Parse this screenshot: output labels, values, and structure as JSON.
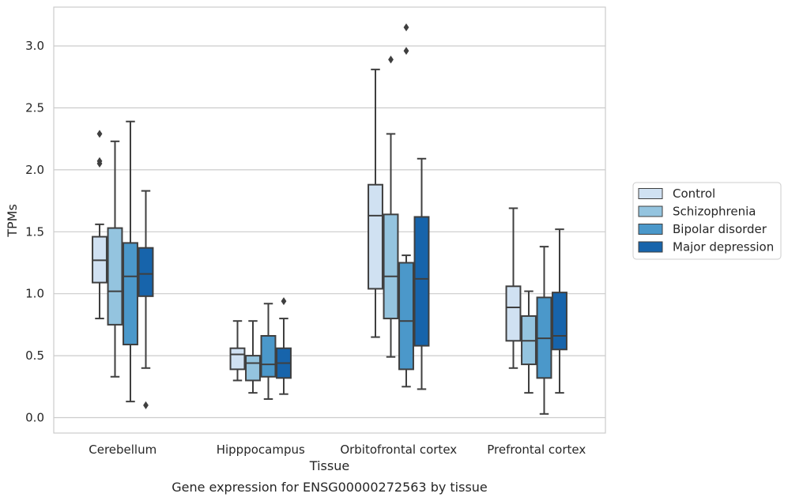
{
  "chart_data": {
    "type": "box",
    "xlabel": "Tissue",
    "ylabel": "TPMs",
    "caption": "Gene expression for ENSG00000272563 by tissue",
    "ylim": [
      -0.12,
      3.32
    ],
    "yticks": [
      "0.0",
      "0.5",
      "1.0",
      "1.5",
      "2.0",
      "2.5",
      "3.0"
    ],
    "grid": "horizontal",
    "legend_position": "right",
    "categories": [
      "Cerebellum",
      "Hipppocampus",
      "Orbitofrontal cortex",
      "Prefrontal cortex"
    ],
    "series": [
      {
        "name": "Control",
        "color": "#d0e1f2",
        "boxes": [
          {
            "whisker_low": 0.8,
            "q1": 1.09,
            "median": 1.27,
            "q3": 1.46,
            "whisker_high": 1.56,
            "outliers": [
              2.05,
              2.07,
              2.29
            ]
          },
          {
            "whisker_low": 0.3,
            "q1": 0.39,
            "median": 0.51,
            "q3": 0.56,
            "whisker_high": 0.78,
            "outliers": []
          },
          {
            "whisker_low": 0.65,
            "q1": 1.04,
            "median": 1.63,
            "q3": 1.88,
            "whisker_high": 2.81,
            "outliers": []
          },
          {
            "whisker_low": 0.4,
            "q1": 0.62,
            "median": 0.89,
            "q3": 1.06,
            "whisker_high": 1.69,
            "outliers": []
          }
        ]
      },
      {
        "name": "Schizophrenia",
        "color": "#94c4df",
        "boxes": [
          {
            "whisker_low": 0.33,
            "q1": 0.75,
            "median": 1.02,
            "q3": 1.53,
            "whisker_high": 2.23,
            "outliers": []
          },
          {
            "whisker_low": 0.2,
            "q1": 0.3,
            "median": 0.44,
            "q3": 0.5,
            "whisker_high": 0.78,
            "outliers": []
          },
          {
            "whisker_low": 0.49,
            "q1": 0.8,
            "median": 1.14,
            "q3": 1.64,
            "whisker_high": 2.29,
            "outliers": [
              2.89
            ]
          },
          {
            "whisker_low": 0.2,
            "q1": 0.43,
            "median": 0.62,
            "q3": 0.82,
            "whisker_high": 1.02,
            "outliers": []
          }
        ]
      },
      {
        "name": "Bipolar disorder",
        "color": "#4b98ca",
        "boxes": [
          {
            "whisker_low": 0.13,
            "q1": 0.59,
            "median": 1.14,
            "q3": 1.41,
            "whisker_high": 2.39,
            "outliers": []
          },
          {
            "whisker_low": 0.15,
            "q1": 0.33,
            "median": 0.43,
            "q3": 0.66,
            "whisker_high": 0.92,
            "outliers": []
          },
          {
            "whisker_low": 0.25,
            "q1": 0.39,
            "median": 0.78,
            "q3": 1.25,
            "whisker_high": 1.31,
            "outliers": [
              2.96,
              3.15
            ]
          },
          {
            "whisker_low": 0.03,
            "q1": 0.32,
            "median": 0.64,
            "q3": 0.97,
            "whisker_high": 1.38,
            "outliers": []
          }
        ]
      },
      {
        "name": "Major depression",
        "color": "#1764ab",
        "boxes": [
          {
            "whisker_low": 0.4,
            "q1": 0.98,
            "median": 1.16,
            "q3": 1.37,
            "whisker_high": 1.83,
            "outliers": [
              0.1
            ]
          },
          {
            "whisker_low": 0.19,
            "q1": 0.32,
            "median": 0.44,
            "q3": 0.56,
            "whisker_high": 0.8,
            "outliers": [
              0.94
            ]
          },
          {
            "whisker_low": 0.23,
            "q1": 0.58,
            "median": 1.12,
            "q3": 1.62,
            "whisker_high": 2.09,
            "outliers": []
          },
          {
            "whisker_low": 0.2,
            "q1": 0.55,
            "median": 0.66,
            "q3": 1.01,
            "whisker_high": 1.52,
            "outliers": []
          }
        ]
      }
    ]
  }
}
